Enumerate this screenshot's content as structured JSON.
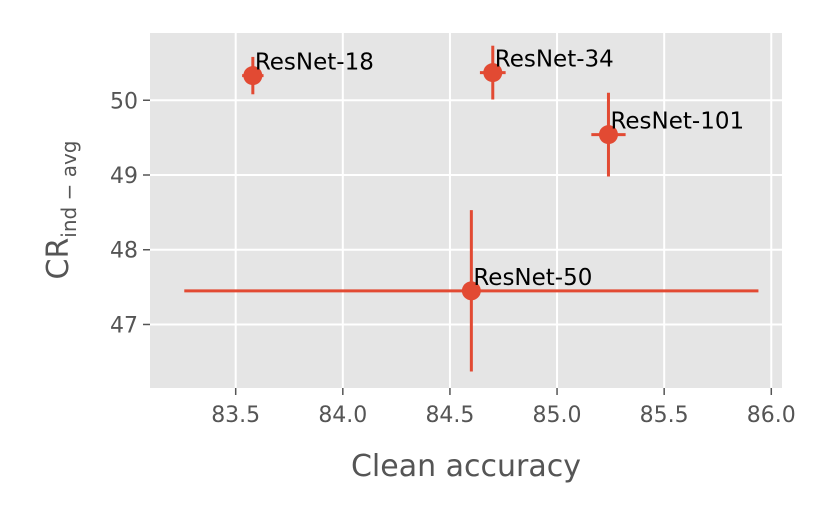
{
  "chart_data": {
    "type": "scatter",
    "title": "",
    "xlabel": "Clean accuracy",
    "ylabel": {
      "base": "CR",
      "subscript": "ind − avg"
    },
    "xlim": [
      83.1,
      86.05
    ],
    "ylim": [
      46.15,
      50.9
    ],
    "xticks": [
      83.5,
      84.0,
      84.5,
      85.0,
      85.5,
      86.0
    ],
    "xtick_labels": [
      "83.5",
      "84.0",
      "84.5",
      "85.0",
      "85.5",
      "86.0"
    ],
    "yticks": [
      47,
      48,
      49,
      50
    ],
    "ytick_labels": [
      "47",
      "48",
      "49",
      "50"
    ],
    "grid": true,
    "background": "#e5e5e5",
    "color": "#e24a33",
    "points": [
      {
        "label": "ResNet-18",
        "x": 83.58,
        "y": 50.33,
        "xerr": 0.05,
        "yerr": 0.25
      },
      {
        "label": "ResNet-34",
        "x": 84.7,
        "y": 50.37,
        "xerr": 0.06,
        "yerr": 0.36
      },
      {
        "label": "ResNet-101",
        "x": 85.24,
        "y": 49.54,
        "xerr": 0.08,
        "yerr": 0.56
      },
      {
        "label": "ResNet-50",
        "x": 84.6,
        "y": 47.45,
        "xerr": 1.34,
        "yerr": 1.08
      }
    ]
  }
}
